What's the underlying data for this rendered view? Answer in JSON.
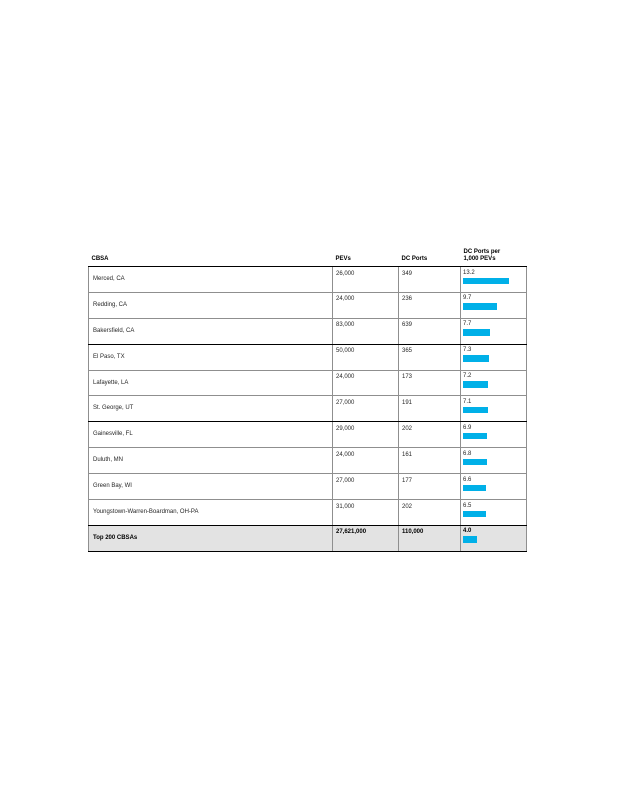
{
  "colors": {
    "bar": "#00B0E8",
    "total_row_bg": "#E3E3E3",
    "thick_rule": "#000000",
    "thin_rule": "#8F8F8F"
  },
  "table": {
    "columns": {
      "cbsa": "CBSA",
      "pevs": "PEVs",
      "ports": "DC Ports",
      "ratio": "DC Ports per\n1,000 PEVs"
    },
    "rows": [
      {
        "cbsa": "Merced, CA",
        "pevs": "26,000",
        "ports": "349",
        "ratio": "13.2"
      },
      {
        "cbsa": "Redding, CA",
        "pevs": "24,000",
        "ports": "236",
        "ratio": "9.7"
      },
      {
        "cbsa": "Bakersfield, CA",
        "pevs": "83,000",
        "ports": "639",
        "ratio": "7.7"
      },
      {
        "cbsa": "El Paso, TX",
        "pevs": "50,000",
        "ports": "365",
        "ratio": "7.3"
      },
      {
        "cbsa": "Lafayette, LA",
        "pevs": "24,000",
        "ports": "173",
        "ratio": "7.2"
      },
      {
        "cbsa": "St. George, UT",
        "pevs": "27,000",
        "ports": "191",
        "ratio": "7.1"
      },
      {
        "cbsa": "Gainesville, FL",
        "pevs": "29,000",
        "ports": "202",
        "ratio": "6.9"
      },
      {
        "cbsa": "Duluth, MN",
        "pevs": "24,000",
        "ports": "161",
        "ratio": "6.8"
      },
      {
        "cbsa": "Green Bay, WI",
        "pevs": "27,000",
        "ports": "177",
        "ratio": "6.6"
      },
      {
        "cbsa": "Youngstown-Warren-Boardman, OH-PA",
        "pevs": "31,000",
        "ports": "202",
        "ratio": "6.5"
      }
    ],
    "total_row": {
      "cbsa": "Top 200 CBSAs",
      "pevs": "27,621,000",
      "ports": "110,000",
      "ratio": "4.0"
    }
  },
  "chart_data": {
    "type": "bar",
    "orientation": "horizontal",
    "categories": [
      "Merced, CA",
      "Redding, CA",
      "Bakersfield, CA",
      "El Paso, TX",
      "Lafayette, LA",
      "St. George, UT",
      "Gainesville, FL",
      "Duluth, MN",
      "Green Bay, WI",
      "Youngstown-Warren-Boardman, OH-PA",
      "Top 200 CBSAs"
    ],
    "values": [
      13.2,
      9.7,
      7.7,
      7.3,
      7.2,
      7.1,
      6.9,
      6.8,
      6.6,
      6.5,
      4.0
    ],
    "series_label": "DC Ports per 1,000 PEVs",
    "supporting_columns": {
      "PEVs": [
        26000,
        24000,
        83000,
        50000,
        24000,
        27000,
        29000,
        24000,
        27000,
        31000,
        27621000
      ],
      "DC Ports": [
        349,
        236,
        639,
        365,
        173,
        191,
        202,
        161,
        177,
        202,
        110000
      ]
    },
    "title": "",
    "xlabel": "",
    "ylabel": "",
    "xlim": [
      0,
      18
    ],
    "grid": false,
    "legend": false
  }
}
